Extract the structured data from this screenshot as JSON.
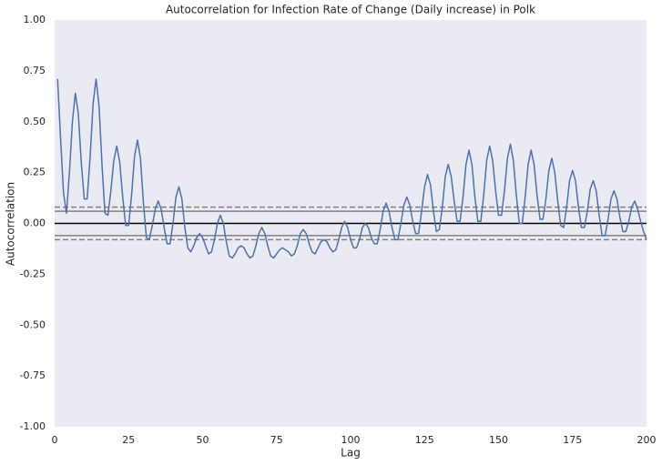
{
  "chart_data": {
    "type": "line",
    "title": "Autocorrelation for Infection Rate of Change (Daily increase) in Polk",
    "x_label": "Lag",
    "y_label": "Autocorrelation",
    "background": "#eaeaf2",
    "grid": false,
    "xlim": [
      0,
      200
    ],
    "ylim": [
      -1,
      1
    ],
    "xticks": [
      0,
      25,
      50,
      75,
      100,
      125,
      150,
      175,
      200
    ],
    "yticks": [
      {
        "value": -1,
        "label": "-1.00"
      },
      {
        "value": -0.75,
        "label": "-0.75"
      },
      {
        "value": -0.5,
        "label": "-0.50"
      },
      {
        "value": -0.25,
        "label": "-0.25"
      },
      {
        "value": 0,
        "label": "0.00"
      },
      {
        "value": 0.25,
        "label": "0.25"
      },
      {
        "value": 0.5,
        "label": "0.50"
      },
      {
        "value": 0.75,
        "label": "0.75"
      },
      {
        "value": 1,
        "label": "1.00"
      }
    ],
    "hlines": [
      {
        "value": 0.06,
        "color": "#808080",
        "dashed": false
      },
      {
        "value": -0.06,
        "color": "#808080",
        "dashed": false
      },
      {
        "value": 0.08,
        "color": "#808080",
        "dashed": true
      },
      {
        "value": -0.08,
        "color": "#808080",
        "dashed": true
      },
      {
        "value": 0,
        "color": "#000000",
        "dashed": false
      }
    ],
    "x": [
      1,
      2,
      3,
      4,
      5,
      6,
      7,
      8,
      9,
      10,
      11,
      12,
      13,
      14,
      15,
      16,
      17,
      18,
      19,
      20,
      21,
      22,
      23,
      24,
      25,
      26,
      27,
      28,
      29,
      30,
      31,
      32,
      33,
      34,
      35,
      36,
      37,
      38,
      39,
      40,
      41,
      42,
      43,
      44,
      45,
      46,
      47,
      48,
      49,
      50,
      51,
      52,
      53,
      54,
      55,
      56,
      57,
      58,
      59,
      60,
      61,
      62,
      63,
      64,
      65,
      66,
      67,
      68,
      69,
      70,
      71,
      72,
      73,
      74,
      75,
      76,
      77,
      78,
      79,
      80,
      81,
      82,
      83,
      84,
      85,
      86,
      87,
      88,
      89,
      90,
      91,
      92,
      93,
      94,
      95,
      96,
      97,
      98,
      99,
      100,
      101,
      102,
      103,
      104,
      105,
      106,
      107,
      108,
      109,
      110,
      111,
      112,
      113,
      114,
      115,
      116,
      117,
      118,
      119,
      120,
      121,
      122,
      123,
      124,
      125,
      126,
      127,
      128,
      129,
      130,
      131,
      132,
      133,
      134,
      135,
      136,
      137,
      138,
      139,
      140,
      141,
      142,
      143,
      144,
      145,
      146,
      147,
      148,
      149,
      150,
      151,
      152,
      153,
      154,
      155,
      156,
      157,
      158,
      159,
      160,
      161,
      162,
      163,
      164,
      165,
      166,
      167,
      168,
      169,
      170,
      171,
      172,
      173,
      174,
      175,
      176,
      177,
      178,
      179,
      180,
      181,
      182,
      183,
      184,
      185,
      186,
      187,
      188,
      189,
      190,
      191,
      192,
      193,
      194,
      195,
      196,
      197,
      198,
      199,
      200
    ],
    "series": [
      {
        "color": "#4c72b0",
        "values": [
          0.71,
          0.42,
          0.15,
          0.05,
          0.25,
          0.5,
          0.64,
          0.54,
          0.3,
          0.12,
          0.12,
          0.33,
          0.59,
          0.71,
          0.58,
          0.29,
          0.05,
          0.04,
          0.16,
          0.31,
          0.38,
          0.3,
          0.13,
          -0.01,
          -0.01,
          0.14,
          0.33,
          0.41,
          0.32,
          0.1,
          -0.07,
          -0.08,
          -0.01,
          0.07,
          0.11,
          0.07,
          -0.02,
          -0.1,
          -0.1,
          0.0,
          0.13,
          0.18,
          0.12,
          -0.02,
          -0.12,
          -0.14,
          -0.11,
          -0.07,
          -0.05,
          -0.07,
          -0.11,
          -0.15,
          -0.14,
          -0.08,
          0.0,
          0.04,
          0.0,
          -0.09,
          -0.16,
          -0.17,
          -0.15,
          -0.12,
          -0.11,
          -0.12,
          -0.15,
          -0.17,
          -0.16,
          -0.11,
          -0.05,
          -0.02,
          -0.05,
          -0.11,
          -0.16,
          -0.17,
          -0.15,
          -0.13,
          -0.12,
          -0.13,
          -0.14,
          -0.16,
          -0.15,
          -0.11,
          -0.05,
          -0.03,
          -0.05,
          -0.1,
          -0.14,
          -0.15,
          -0.12,
          -0.09,
          -0.08,
          -0.09,
          -0.12,
          -0.14,
          -0.13,
          -0.08,
          -0.02,
          0.01,
          -0.02,
          -0.08,
          -0.12,
          -0.12,
          -0.08,
          -0.02,
          0.0,
          -0.02,
          -0.07,
          -0.1,
          -0.1,
          -0.03,
          0.06,
          0.1,
          0.06,
          -0.02,
          -0.08,
          -0.08,
          0.0,
          0.09,
          0.13,
          0.09,
          0.01,
          -0.05,
          -0.05,
          0.06,
          0.18,
          0.24,
          0.19,
          0.06,
          -0.04,
          -0.03,
          0.08,
          0.23,
          0.29,
          0.23,
          0.11,
          0.01,
          0.01,
          0.13,
          0.29,
          0.36,
          0.29,
          0.13,
          0.01,
          0.01,
          0.14,
          0.31,
          0.38,
          0.31,
          0.16,
          0.04,
          0.04,
          0.16,
          0.32,
          0.39,
          0.31,
          0.14,
          0.0,
          0.0,
          0.13,
          0.29,
          0.36,
          0.29,
          0.14,
          0.02,
          0.02,
          0.12,
          0.26,
          0.32,
          0.25,
          0.11,
          -0.01,
          -0.02,
          0.08,
          0.21,
          0.26,
          0.21,
          0.08,
          -0.02,
          -0.02,
          0.06,
          0.17,
          0.21,
          0.16,
          0.04,
          -0.06,
          -0.06,
          0.02,
          0.12,
          0.16,
          0.12,
          0.03,
          -0.04,
          -0.04,
          0.01,
          0.08,
          0.11,
          0.07,
          0.01,
          -0.04,
          -0.08
        ]
      }
    ]
  }
}
